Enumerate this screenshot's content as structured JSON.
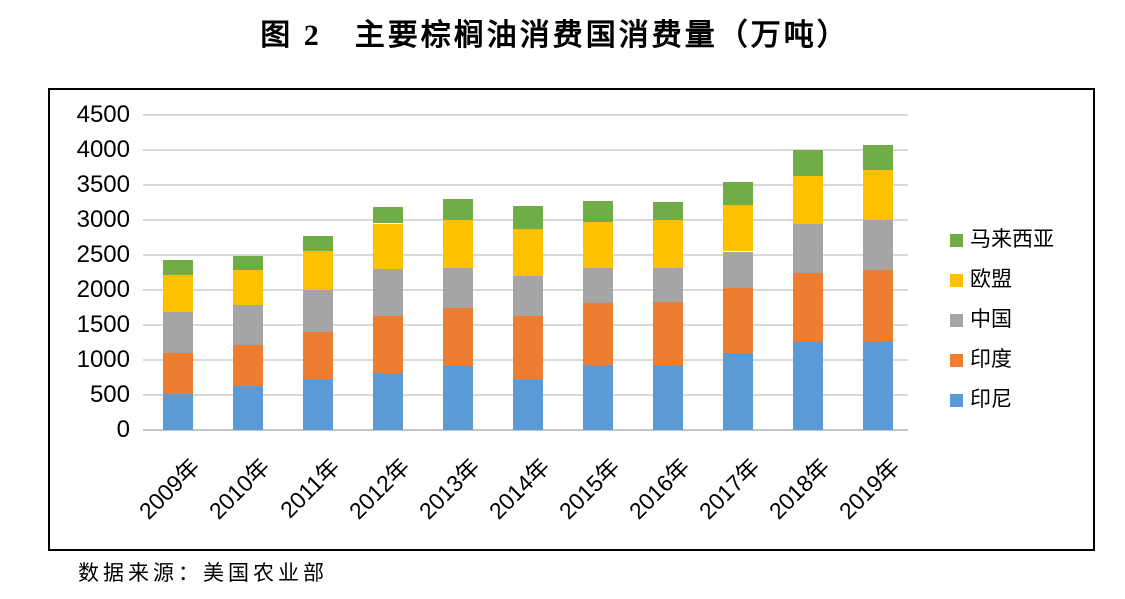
{
  "title": "图 2　主要棕榈油消费国消费量（万吨）",
  "source_note": "数据来源：美国农业部",
  "colors": {
    "indonesia_blue": "#5B9BD5",
    "india_orange": "#ED7D31",
    "china_gray": "#A5A5A5",
    "eu_yellow": "#FFC000",
    "malaysia_green": "#70AD47",
    "gridline": "#D9D9D9",
    "frame_border": "#000000"
  },
  "chart_data": {
    "type": "bar",
    "stacked": true,
    "title": "图 2　主要棕榈油消费国消费量（万吨）",
    "unit": "万吨",
    "categories": [
      "2009年",
      "2010年",
      "2011年",
      "2012年",
      "2013年",
      "2014年",
      "2015年",
      "2016年",
      "2017年",
      "2018年",
      "2019年"
    ],
    "series": [
      {
        "name": "印尼",
        "color": "#5B9BD5",
        "values": [
          515,
          630,
          715,
          820,
          920,
          715,
          935,
          920,
          1100,
          1260,
          1275
        ]
      },
      {
        "name": "印度",
        "color": "#ED7D31",
        "values": [
          580,
          585,
          690,
          810,
          825,
          915,
          885,
          910,
          925,
          985,
          1010
        ]
      },
      {
        "name": "中国",
        "color": "#A5A5A5",
        "values": [
          585,
          570,
          595,
          665,
          565,
          570,
          490,
          490,
          525,
          700,
          715
        ]
      },
      {
        "name": "欧盟",
        "color": "#FFC000",
        "values": [
          535,
          500,
          555,
          655,
          690,
          670,
          655,
          680,
          670,
          690,
          715
        ]
      },
      {
        "name": "马来西亚",
        "color": "#70AD47",
        "values": [
          215,
          200,
          215,
          240,
          295,
          335,
          305,
          255,
          330,
          365,
          355
        ]
      }
    ],
    "totals": [
      2430,
      2485,
      2770,
      3190,
      3295,
      3205,
      3270,
      3255,
      3550,
      4000,
      4070
    ],
    "yaxis": {
      "min": 0,
      "max": 4500,
      "step": 500,
      "ticks": [
        4500,
        4000,
        3500,
        3000,
        2500,
        2000,
        1500,
        1000,
        500,
        0
      ]
    },
    "legend": {
      "position": "right",
      "items": [
        {
          "label": "马来西亚",
          "color": "#70AD47"
        },
        {
          "label": "欧盟",
          "color": "#FFC000"
        },
        {
          "label": "中国",
          "color": "#A5A5A5"
        },
        {
          "label": "印度",
          "color": "#ED7D31"
        },
        {
          "label": "印尼",
          "color": "#5B9BD5"
        }
      ]
    },
    "grid": true
  }
}
